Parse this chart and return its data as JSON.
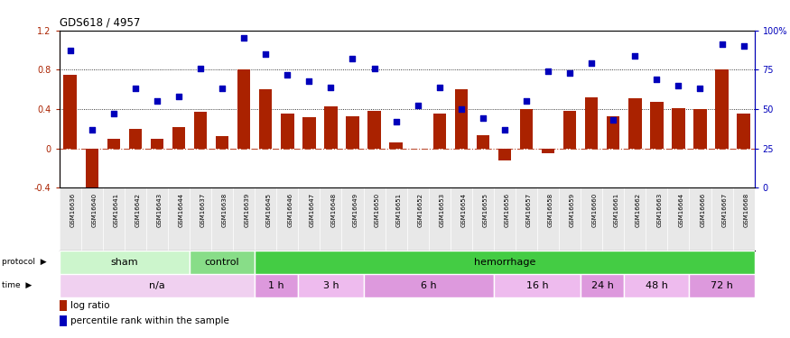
{
  "title": "GDS618 / 4957",
  "categories": [
    "GSM16636",
    "GSM16640",
    "GSM16641",
    "GSM16642",
    "GSM16643",
    "GSM16644",
    "GSM16637",
    "GSM16638",
    "GSM16639",
    "GSM16645",
    "GSM16646",
    "GSM16647",
    "GSM16648",
    "GSM16649",
    "GSM16650",
    "GSM16651",
    "GSM16652",
    "GSM16653",
    "GSM16654",
    "GSM16655",
    "GSM16656",
    "GSM16657",
    "GSM16658",
    "GSM16659",
    "GSM16660",
    "GSM16661",
    "GSM16662",
    "GSM16663",
    "GSM16664",
    "GSM16666",
    "GSM16667",
    "GSM16668"
  ],
  "log_ratio": [
    0.75,
    -0.43,
    0.1,
    0.2,
    0.1,
    0.22,
    0.37,
    0.12,
    0.8,
    0.6,
    0.35,
    0.32,
    0.43,
    0.33,
    0.38,
    0.06,
    0.0,
    0.35,
    0.6,
    0.13,
    -0.12,
    0.4,
    -0.05,
    0.38,
    0.52,
    0.33,
    0.51,
    0.47,
    0.41,
    0.4,
    0.8,
    0.35
  ],
  "percentile": [
    87,
    37,
    47,
    63,
    55,
    58,
    76,
    63,
    95,
    85,
    72,
    68,
    64,
    82,
    76,
    42,
    52,
    64,
    50,
    44,
    37,
    55,
    74,
    73,
    79,
    43,
    84,
    69,
    65,
    63,
    91,
    90
  ],
  "protocol_groups": [
    {
      "label": "sham",
      "start": 0,
      "end": 6,
      "color": "#ccf5cc"
    },
    {
      "label": "control",
      "start": 6,
      "end": 9,
      "color": "#88dd88"
    },
    {
      "label": "hemorrhage",
      "start": 9,
      "end": 32,
      "color": "#44cc44"
    }
  ],
  "time_groups": [
    {
      "label": "n/a",
      "start": 0,
      "end": 9,
      "color": "#f0d0f0"
    },
    {
      "label": "1 h",
      "start": 9,
      "end": 11,
      "color": "#dd99dd"
    },
    {
      "label": "3 h",
      "start": 11,
      "end": 14,
      "color": "#eebbee"
    },
    {
      "label": "6 h",
      "start": 14,
      "end": 20,
      "color": "#dd99dd"
    },
    {
      "label": "16 h",
      "start": 20,
      "end": 24,
      "color": "#eebbee"
    },
    {
      "label": "24 h",
      "start": 24,
      "end": 26,
      "color": "#dd99dd"
    },
    {
      "label": "48 h",
      "start": 26,
      "end": 29,
      "color": "#eebbee"
    },
    {
      "label": "72 h",
      "start": 29,
      "end": 32,
      "color": "#dd99dd"
    }
  ],
  "bar_color": "#aa2200",
  "dot_color": "#0000bb",
  "ylim_left": [
    -0.4,
    1.2
  ],
  "ylim_right": [
    0,
    100
  ],
  "yticks_left": [
    -0.4,
    0.0,
    0.4,
    0.8,
    1.2
  ],
  "ytick_labels_left": [
    "-0.4",
    "0",
    "0.4",
    "0.8",
    "1.2"
  ],
  "yticks_right": [
    0,
    25,
    50,
    75,
    100
  ],
  "ytick_labels_right": [
    "0",
    "25",
    "50",
    "75",
    "100%"
  ],
  "hline_zero": 0.0,
  "hline_dotted": [
    0.4,
    0.8
  ]
}
